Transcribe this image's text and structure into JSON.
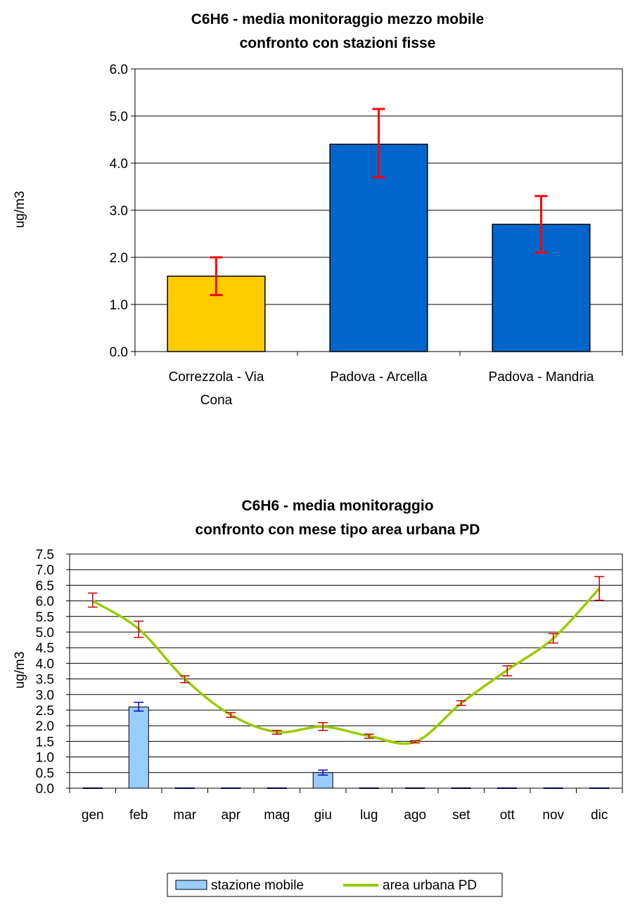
{
  "chart_data": [
    {
      "type": "bar",
      "title": "C6H6 - media monitoraggio mezzo mobile",
      "subtitle": "confronto con stazioni fisse",
      "ylabel": "ug/m3",
      "xlabel": "",
      "ylim": [
        0,
        6
      ],
      "y_ticks": [
        "0.0",
        "1.0",
        "2.0",
        "3.0",
        "4.0",
        "5.0",
        "6.0"
      ],
      "categories": [
        {
          "line1": "Correzzola - Via",
          "line2": "Cona"
        },
        {
          "line1": "Padova - Arcella",
          "line2": ""
        },
        {
          "line1": "Padova - Mandria",
          "line2": ""
        }
      ],
      "values": [
        1.6,
        4.4,
        2.7
      ],
      "error_low": [
        1.2,
        3.7,
        2.1
      ],
      "error_high": [
        2.0,
        5.15,
        3.3
      ],
      "colors": [
        "#ffcc00",
        "#0066cc",
        "#0066cc"
      ],
      "error_color": "#ff0000",
      "grid": true
    },
    {
      "type": "bar+line",
      "title": "C6H6 -  media monitoraggio",
      "subtitle": "confronto con mese tipo area urbana PD",
      "ylabel": "ug/m3",
      "xlabel": "",
      "ylim": [
        0,
        7.5
      ],
      "y_ticks": [
        "0.0",
        "0.5",
        "1.0",
        "1.5",
        "2.0",
        "2.5",
        "3.0",
        "3.5",
        "4.0",
        "4.5",
        "5.0",
        "5.5",
        "6.0",
        "6.5",
        "7.0",
        "7.5"
      ],
      "categories": [
        "gen",
        "feb",
        "mar",
        "apr",
        "mag",
        "giu",
        "lug",
        "ago",
        "set",
        "ott",
        "nov",
        "dic"
      ],
      "series": [
        {
          "name": "stazione mobile",
          "kind": "bar",
          "color": "#99ccff",
          "values": [
            0,
            2.6,
            0,
            0,
            0,
            0.5,
            0,
            0,
            0,
            0,
            0,
            0
          ],
          "error_low": [
            null,
            2.47,
            null,
            null,
            null,
            0.42,
            null,
            null,
            null,
            null,
            null,
            null
          ],
          "error_high": [
            null,
            2.75,
            null,
            null,
            null,
            0.58,
            null,
            null,
            null,
            null,
            null,
            null
          ],
          "error_color": "#0000cc"
        },
        {
          "name": "area urbana PD",
          "kind": "line",
          "color": "#99cc00",
          "values": [
            6.0,
            5.1,
            3.5,
            2.35,
            1.8,
            1.97,
            1.67,
            1.48,
            2.72,
            3.78,
            4.8,
            6.4
          ],
          "error_low": [
            5.8,
            4.83,
            3.38,
            2.27,
            1.73,
            1.85,
            1.6,
            1.45,
            2.65,
            3.6,
            4.65,
            6.02
          ],
          "error_high": [
            6.25,
            5.35,
            3.6,
            2.42,
            1.85,
            2.1,
            1.73,
            1.52,
            2.8,
            3.92,
            4.95,
            6.78
          ],
          "error_color": "#cc0000"
        }
      ],
      "legend_position": "bottom",
      "grid": true
    }
  ]
}
